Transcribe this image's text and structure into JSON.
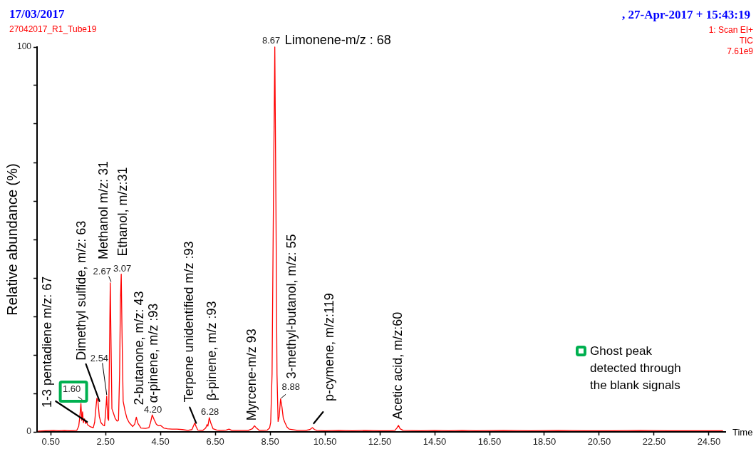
{
  "chart_data": {
    "type": "line",
    "title": "17/03/2017",
    "subtitle": "27042017_R1_Tube19",
    "xlabel": "Time",
    "ylabel": "Relative abundance (%)",
    "x": [
      0.05,
      0.3,
      0.6,
      0.8,
      1.0,
      1.2,
      1.45,
      1.52,
      1.56,
      1.6,
      1.63,
      1.66,
      1.69,
      1.73,
      1.77,
      1.8,
      1.85,
      1.95,
      2.05,
      2.1,
      2.15,
      2.18,
      2.22,
      2.27,
      2.33,
      2.4,
      2.46,
      2.5,
      2.54,
      2.58,
      2.61,
      2.64,
      2.67,
      2.7,
      2.73,
      2.78,
      2.85,
      2.92,
      2.97,
      3.01,
      3.04,
      3.07,
      3.1,
      3.14,
      3.21,
      3.28,
      3.36,
      3.49,
      3.56,
      3.62,
      3.68,
      3.79,
      3.95,
      4.08,
      4.14,
      4.2,
      4.27,
      4.35,
      4.42,
      4.5,
      4.62,
      4.75,
      4.92,
      5.1,
      5.3,
      5.5,
      5.65,
      5.7,
      5.75,
      5.8,
      5.86,
      6.05,
      6.15,
      6.2,
      6.23,
      6.28,
      6.34,
      6.42,
      6.55,
      6.7,
      6.9,
      7.0,
      7.1,
      7.4,
      7.7,
      7.85,
      7.93,
      8.0,
      8.1,
      8.4,
      8.48,
      8.52,
      8.57,
      8.62,
      8.67,
      8.71,
      8.75,
      8.79,
      8.83,
      8.88,
      8.93,
      8.98,
      9.04,
      9.12,
      9.2,
      9.5,
      9.8,
      9.95,
      10.04,
      10.12,
      10.2,
      10.5,
      11.0,
      11.5,
      12.0,
      12.5,
      12.9,
      13.05,
      13.12,
      13.18,
      13.24,
      13.35,
      14.0,
      14.5,
      15.0,
      15.5,
      16.0,
      17.0,
      18.0,
      19.0,
      20.0,
      21.0,
      22.0,
      23.0,
      24.0,
      25.0
    ],
    "values": [
      0.2,
      0.3,
      0.4,
      0.3,
      0.4,
      0.3,
      0.4,
      1.5,
      4.0,
      7.4,
      3.0,
      5.2,
      2.4,
      3.4,
      2.2,
      2.6,
      1.8,
      1.3,
      1.1,
      2.5,
      6.5,
      8.7,
      8.0,
      4.0,
      2.4,
      1.8,
      1.6,
      5.0,
      9.3,
      3.5,
      3.0,
      20.0,
      38.7,
      22.0,
      6.0,
      5.0,
      3.5,
      2.8,
      3.0,
      15.0,
      34.0,
      41.0,
      25.0,
      8.0,
      5.4,
      3.5,
      2.4,
      1.4,
      2.0,
      3.8,
      2.2,
      1.0,
      0.9,
      1.1,
      2.5,
      4.4,
      3.2,
      2.0,
      1.6,
      1.7,
      1.0,
      0.8,
      0.7,
      0.7,
      0.6,
      0.4,
      0.6,
      1.5,
      2.3,
      1.4,
      0.5,
      0.4,
      1.0,
      1.9,
      1.5,
      3.7,
      2.2,
      0.8,
      0.5,
      0.4,
      0.5,
      0.7,
      0.4,
      0.4,
      0.4,
      0.8,
      1.6,
      1.0,
      0.4,
      0.5,
      1.0,
      2.5,
      15.0,
      60.0,
      100,
      60.0,
      15.0,
      2.7,
      4.0,
      8.6,
      6.5,
      3.5,
      2.4,
      1.2,
      0.7,
      0.4,
      0.4,
      0.6,
      1.1,
      0.6,
      0.4,
      0.3,
      0.4,
      0.3,
      0.4,
      0.3,
      0.3,
      0.4,
      1.0,
      1.7,
      0.8,
      0.4,
      0.3,
      0.4,
      0.3,
      0.4,
      0.3,
      0.4,
      0.3,
      0.4,
      0.3,
      0.3,
      0.4,
      0.3,
      0.3,
      0.3
    ],
    "color": "#ff0000",
    "xlim": [
      0,
      25.1
    ],
    "xticks": [
      {
        "value": 0.5,
        "label": "0.50"
      },
      {
        "value": 2.5,
        "label": "2.50"
      },
      {
        "value": 4.5,
        "label": "4.50"
      },
      {
        "value": 6.5,
        "label": "6.50"
      },
      {
        "value": 8.5,
        "label": "8.50"
      },
      {
        "value": 10.5,
        "label": "10.50"
      },
      {
        "value": 12.5,
        "label": "12.50"
      },
      {
        "value": 14.5,
        "label": "14.50"
      },
      {
        "value": 16.5,
        "label": "16.50"
      },
      {
        "value": 18.5,
        "label": "18.50"
      },
      {
        "value": 20.5,
        "label": "20.50"
      },
      {
        "value": 22.5,
        "label": "22.50"
      },
      {
        "value": 24.5,
        "label": "24.50"
      }
    ],
    "ylim": [
      0,
      100
    ],
    "yticks": [
      0,
      {
        "value": 10,
        "label": null
      },
      {
        "value": 20,
        "label": null
      },
      {
        "value": 30,
        "label": null
      },
      {
        "value": 40,
        "label": null
      },
      {
        "value": 50,
        "label": null
      },
      {
        "value": 60,
        "label": null
      },
      {
        "value": 70,
        "label": null
      },
      {
        "value": 80,
        "label": null
      },
      {
        "value": 90,
        "label": null
      },
      100
    ],
    "annotations": [
      ", 27-Apr-2017 + 15:43:19",
      "1: Scan EI+",
      "TIC",
      "7.61e9",
      "Ghost peak detected through the blank signals",
      {
        "text": "1.60",
        "x": 1.6,
        "y": 7.4
      },
      {
        "text": "1-3 pentadiene m/z: 67",
        "x": 1.8,
        "y": 2.6
      },
      {
        "text": "Dimethyl sulfide, m/z: 63",
        "x": 2.25,
        "y": 8.0
      },
      {
        "text": "2.54",
        "x": 2.54,
        "y": 9.3
      },
      {
        "text": "2.67",
        "x": 2.67,
        "y": 38.7
      },
      {
        "text": "Methanol m/z: 31",
        "x": 2.67,
        "y": 38.7
      },
      {
        "text": "3.07",
        "x": 3.07,
        "y": 41.0
      },
      {
        "text": "Ethanol, m/z:31",
        "x": 3.07,
        "y": 41.0
      },
      {
        "text": "2-butanone, m/z: 43",
        "x": 3.62,
        "y": 3.8
      },
      {
        "text": "4.20",
        "x": 4.2,
        "y": 4.4
      },
      {
        "text": "α-pinene, m/z :93",
        "x": 4.2,
        "y": 4.4
      },
      {
        "text": "Terpene unidentified m/z :93",
        "x": 5.75,
        "y": 2.3
      },
      {
        "text": "6.28",
        "x": 6.28,
        "y": 3.7
      },
      {
        "text": "β-pinene, m/z :93",
        "x": 6.28,
        "y": 3.7
      },
      {
        "text": "Myrcene-m/z 93",
        "x": 7.93,
        "y": 1.6
      },
      {
        "text": "8.67",
        "x": 8.67,
        "y": 100
      },
      {
        "text": "Limonene-m/z : 68",
        "x": 8.67,
        "y": 100
      },
      {
        "text": "3-methyl-butanol, m/z: 55",
        "x": 8.88,
        "y": 8.6
      },
      {
        "text": "8.88",
        "x": 8.88,
        "y": 8.6
      },
      {
        "text": "p-cymene, m/z:119",
        "x": 10.04,
        "y": 1.1
      },
      {
        "text": "Acetic acid, m/z:60",
        "x": 13.18,
        "y": 1.7
      }
    ]
  }
}
